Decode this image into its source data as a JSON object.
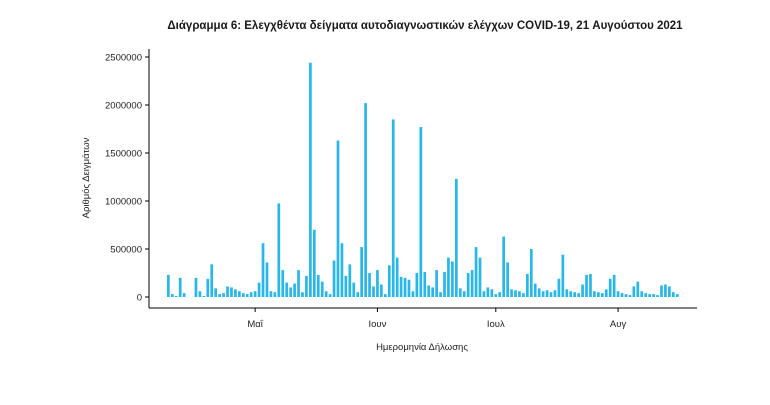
{
  "chart_data": {
    "type": "bar",
    "title": "Διάγραμμα 6: Ελεγχθέντα δείγματα αυτοδιαγνωστικών ελέγχων COVID-19, 21 Αυγούστου 2021",
    "xlabel": "Ημερομηνία Δήλωσης",
    "ylabel": "Αριθμός Δειγμάτων",
    "ylim": [
      0,
      2500000
    ],
    "yticks": [
      0,
      500000,
      1000000,
      1500000,
      2000000,
      2500000
    ],
    "xtick_labels": [
      {
        "label": "Μαΐ",
        "index": 22
      },
      {
        "label": "Ιουν",
        "index": 53
      },
      {
        "label": "Ιουλ",
        "index": 83
      },
      {
        "label": "Αυγ",
        "index": 114
      }
    ],
    "grid": false,
    "color": "#29b6e8",
    "values": [
      230000,
      30000,
      10000,
      200000,
      40000,
      0,
      0,
      200000,
      60000,
      10000,
      190000,
      340000,
      90000,
      30000,
      40000,
      110000,
      100000,
      80000,
      60000,
      40000,
      30000,
      50000,
      60000,
      150000,
      560000,
      360000,
      60000,
      50000,
      975000,
      280000,
      150000,
      100000,
      140000,
      280000,
      50000,
      220000,
      2440000,
      700000,
      230000,
      160000,
      60000,
      30000,
      380000,
      1630000,
      560000,
      220000,
      340000,
      150000,
      50000,
      520000,
      2020000,
      250000,
      110000,
      280000,
      130000,
      30000,
      330000,
      1850000,
      410000,
      210000,
      200000,
      180000,
      60000,
      250000,
      1770000,
      260000,
      120000,
      100000,
      280000,
      50000,
      260000,
      410000,
      370000,
      1230000,
      90000,
      60000,
      250000,
      280000,
      520000,
      410000,
      60000,
      100000,
      80000,
      30000,
      50000,
      630000,
      360000,
      80000,
      70000,
      60000,
      40000,
      240000,
      500000,
      140000,
      90000,
      60000,
      70000,
      50000,
      70000,
      190000,
      440000,
      80000,
      60000,
      50000,
      40000,
      130000,
      230000,
      240000,
      60000,
      50000,
      40000,
      80000,
      190000,
      230000,
      60000,
      40000,
      30000,
      20000,
      110000,
      160000,
      60000,
      40000,
      30000,
      30000,
      20000,
      120000,
      130000,
      110000,
      50000,
      30000
    ]
  }
}
